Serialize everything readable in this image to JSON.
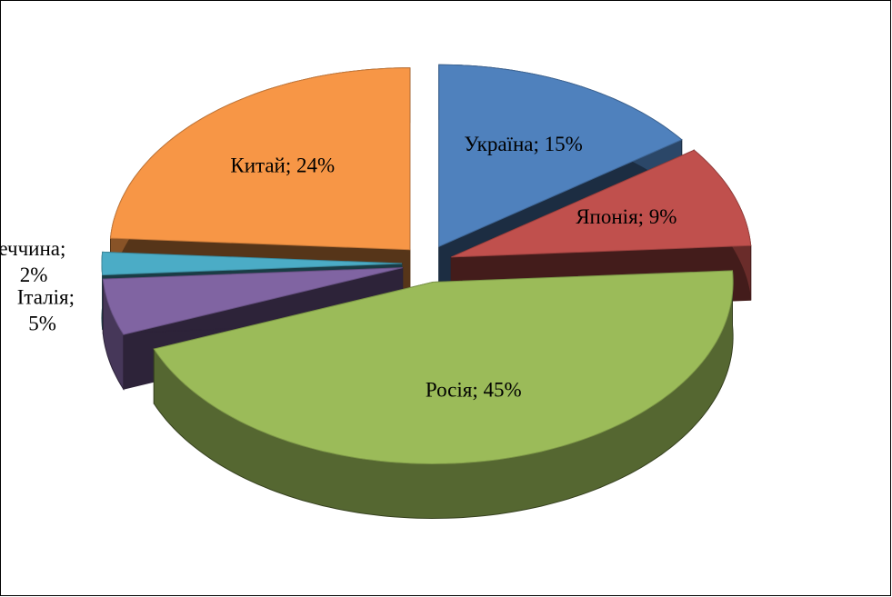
{
  "chart_data": {
    "type": "pie3d",
    "categories": [
      "Україна;",
      "Японія;",
      "Росія;",
      "Італія;",
      "Німеччина;",
      "Китай;"
    ],
    "values": [
      15,
      9,
      45,
      5,
      2,
      24
    ],
    "value_labels": [
      "15%",
      "9%",
      "45%",
      "5%",
      "2%",
      "24%"
    ],
    "colors": [
      "#4f81bd",
      "#c0504d",
      "#9bbb59",
      "#8064a2",
      "#4bacc6",
      "#f79646"
    ]
  }
}
